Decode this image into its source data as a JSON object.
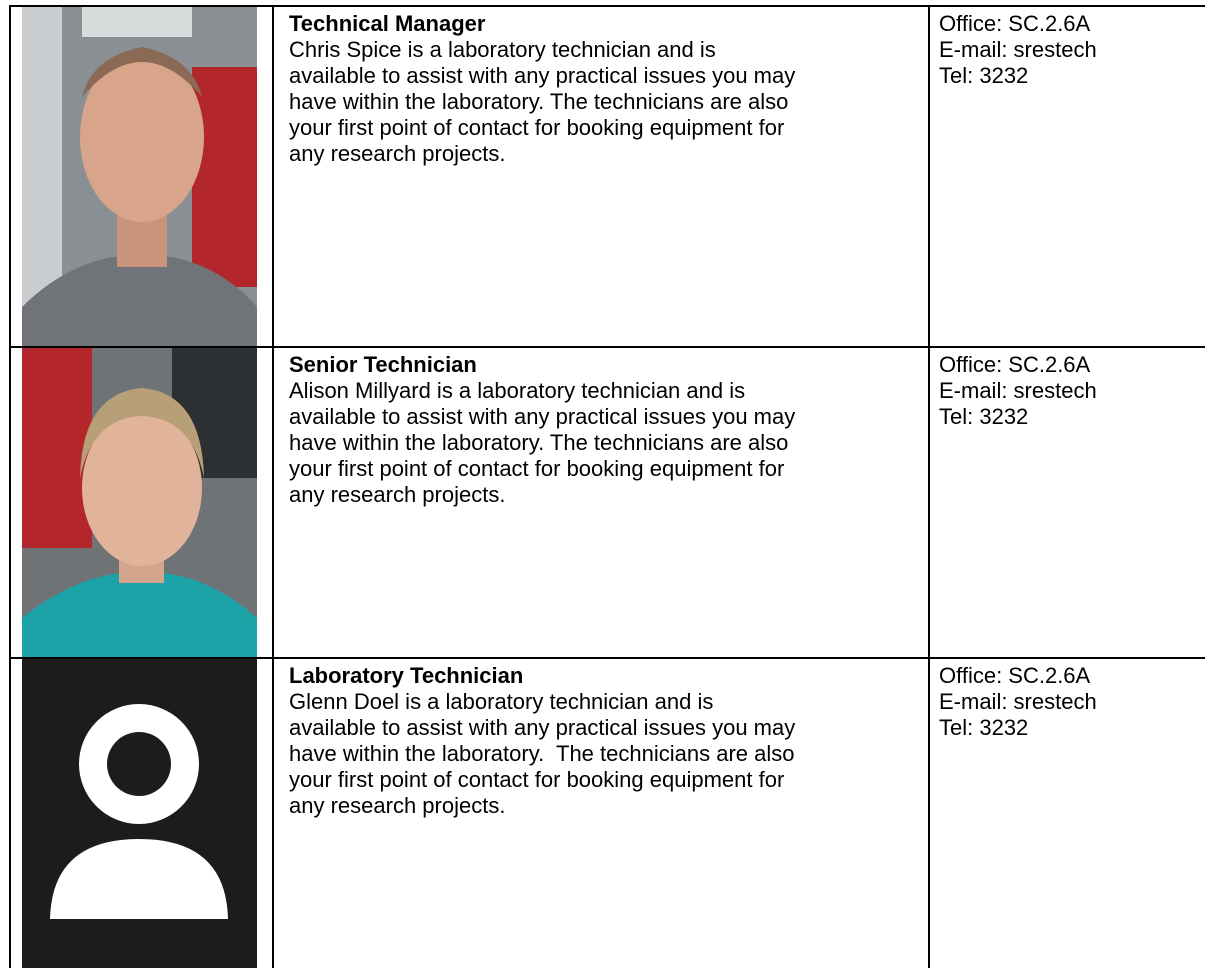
{
  "staff": [
    {
      "role": "Technical Manager",
      "description_lines": [
        "Chris Spice is a laboratory technician and is",
        "available to assist with any practical issues you may",
        "have within the laboratory. The technicians are also",
        "your first point of contact for booking equipment for",
        "any research projects."
      ],
      "contact": [
        "Office: SC.2.6A",
        "E-mail: srestech",
        "Tel: 3232"
      ]
    },
    {
      "role": "Senior Technician",
      "description_lines": [
        "Alison Millyard is a laboratory technician and is",
        "available to assist with any practical issues you may",
        "have within the laboratory. The technicians are also",
        "your first point of contact for booking equipment for",
        "any research projects."
      ],
      "contact": [
        "Office: SC.2.6A",
        "E-mail: srestech",
        "Tel: 3232"
      ]
    },
    {
      "role": "Laboratory Technician",
      "description_lines": [
        "Glenn Doel is a laboratory technician and is",
        "available to assist with any practical issues you may",
        "have within the laboratory.  The technicians are also",
        "your first point of contact for booking equipment for",
        "any research projects."
      ],
      "contact": [
        "Office: SC.2.6A",
        "E-mail: srestech",
        "Tel: 3232"
      ]
    }
  ]
}
